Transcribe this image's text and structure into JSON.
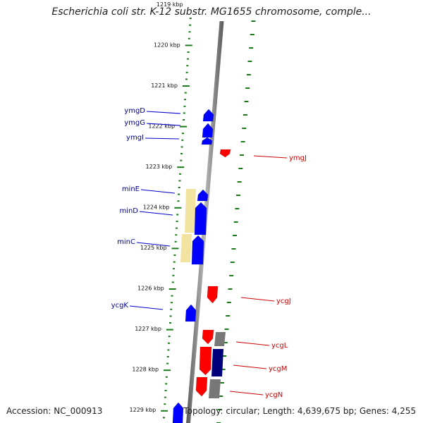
{
  "title": "Escherichia coli str. K-12 substr. MG1655 chromosome, comple...",
  "accession": "Accession: NC_000913",
  "topology": "Topology: circular; Length: 4,639,675 bp; Genes: 4,255",
  "colors": {
    "forward": "#0000ff",
    "reverse": "#ff0000",
    "gray_feature": "#777777",
    "navy_feature": "#00007a",
    "yellow_feature": "#f2e3a0",
    "ticks": "#1a7a1a",
    "backbone": "#8a8a8a",
    "label_forward": "#00008b",
    "label_reverse": "#cc0000"
  },
  "scale_labels": [
    "1219 kbp",
    "1220 kbp",
    "1221 kbp",
    "1222 kbp",
    "1223 kbp",
    "1224 kbp",
    "1225 kbp",
    "1226 kbp",
    "1227 kbp",
    "1228 kbp",
    "1229 kbp"
  ],
  "genes_forward": [
    "ymgD",
    "ymgG",
    "ymgI",
    "minE",
    "minD",
    "minC",
    "ycgK"
  ],
  "genes_reverse": [
    "ymgJ",
    "ycgJ",
    "ycgL",
    "ycgM",
    "ycgN"
  ]
}
